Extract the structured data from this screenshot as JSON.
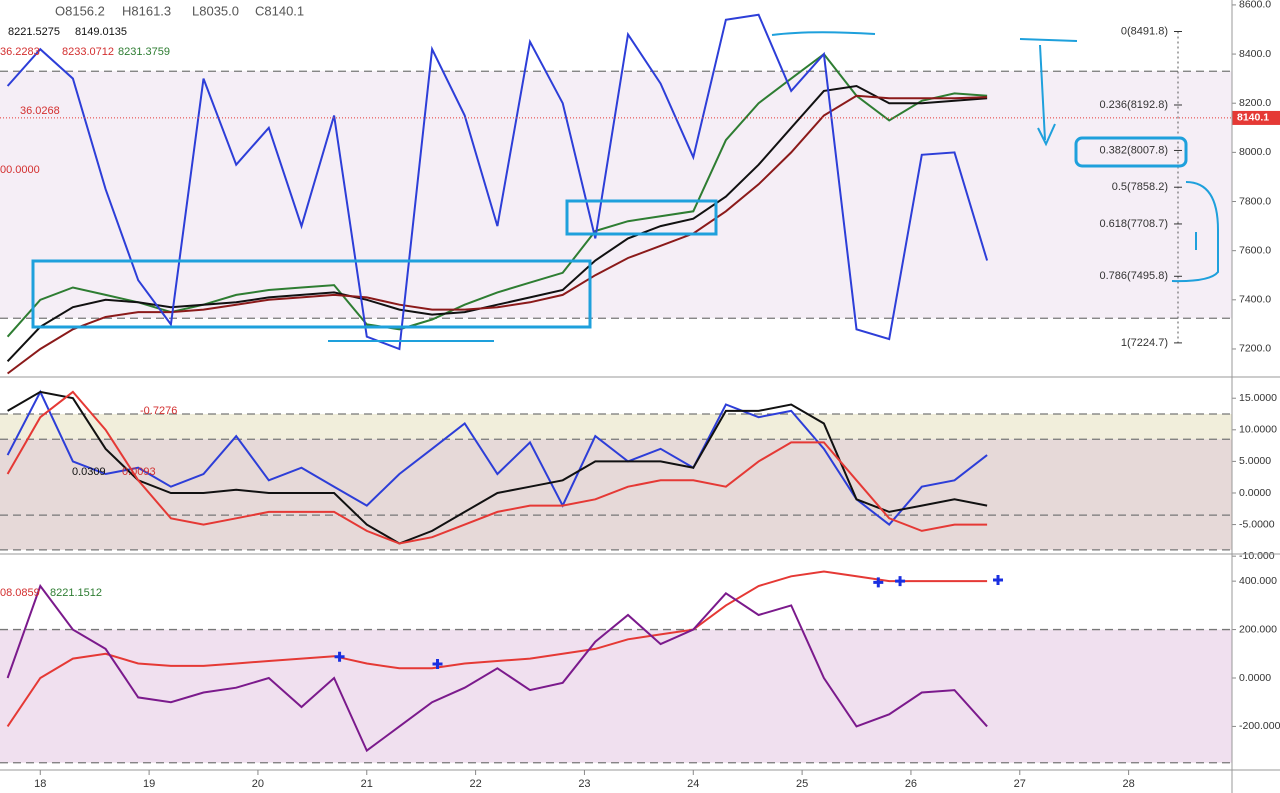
{
  "header": {
    "ohlc": [
      "O8156.2",
      "H8161.3",
      "L8035.0",
      "C8140.1"
    ]
  },
  "chart_data": [
    {
      "type": "line",
      "xlim": [
        17.63,
        28.95
      ],
      "xticks": [
        18,
        19,
        20,
        21,
        22,
        23,
        24,
        25,
        26,
        27,
        28
      ],
      "ylim": [
        7090,
        8620
      ],
      "yticks": [
        {
          "value": 8600,
          "label": "8600.0"
        },
        {
          "value": 8400,
          "label": "8400.0"
        },
        {
          "value": 8200,
          "label": "8200.0"
        },
        {
          "value": 8000,
          "label": "8000.0"
        },
        {
          "value": 7800,
          "label": "7800.0"
        },
        {
          "value": 7600,
          "label": "7600.0"
        },
        {
          "value": 7400,
          "label": "7400.0"
        },
        {
          "value": 7200,
          "label": "7200.0"
        }
      ],
      "bands": [
        {
          "from": 7325,
          "to": 8330,
          "color": "#f5eef6"
        }
      ],
      "hlines": [
        8330,
        7325
      ],
      "x": [
        17.7,
        18.0,
        18.3,
        18.6,
        18.9,
        19.2,
        19.5,
        19.8,
        20.1,
        20.4,
        20.7,
        21.0,
        21.3,
        21.6,
        21.9,
        22.2,
        22.5,
        22.8,
        23.1,
        23.4,
        23.7,
        24.0,
        24.3,
        24.6,
        24.9,
        25.2,
        25.5,
        25.8,
        26.1,
        26.4,
        26.7
      ],
      "series": [
        {
          "color": "#2e7d32",
          "values": [
            7250,
            7400,
            7450,
            7420,
            7390,
            7350,
            7380,
            7420,
            7440,
            7450,
            7460,
            7300,
            7280,
            7320,
            7380,
            7430,
            7470,
            7510,
            7680,
            7720,
            7740,
            7760,
            8050,
            8200,
            8300,
            8400,
            8230,
            8130,
            8210,
            8240,
            8230
          ]
        },
        {
          "color": "#111111",
          "values": [
            7150,
            7290,
            7370,
            7400,
            7390,
            7370,
            7380,
            7390,
            7410,
            7420,
            7430,
            7400,
            7360,
            7340,
            7350,
            7380,
            7410,
            7440,
            7560,
            7650,
            7700,
            7730,
            7820,
            7950,
            8100,
            8250,
            8270,
            8200,
            8200,
            8210,
            8220
          ]
        },
        {
          "color": "#8b1a1a",
          "values": [
            7100,
            7200,
            7280,
            7330,
            7350,
            7350,
            7360,
            7380,
            7400,
            7410,
            7420,
            7410,
            7380,
            7360,
            7360,
            7370,
            7390,
            7420,
            7500,
            7570,
            7620,
            7670,
            7760,
            7870,
            8000,
            8150,
            8230,
            8220,
            8220,
            8220,
            8225
          ]
        },
        {
          "color": "#2d3ed8",
          "values": [
            8270,
            8420,
            8300,
            7850,
            7480,
            7300,
            8300,
            7950,
            8100,
            7700,
            8150,
            7250,
            7200,
            8420,
            8150,
            7700,
            8450,
            8200,
            7650,
            8480,
            8280,
            7980,
            8540,
            8560,
            8250,
            8400,
            7280,
            7240,
            7990,
            8000,
            7560
          ]
        }
      ],
      "levels": [
        {
          "value": 8491.8,
          "label": "0(8491.8)"
        },
        {
          "value": 8192.8,
          "label": "0.236(8192.8)"
        },
        {
          "value": 8007.8,
          "label": "0.382(8007.8)"
        },
        {
          "value": 7858.2,
          "label": "0.5(7858.2)"
        },
        {
          "value": 7708.7,
          "label": "0.618(7708.7)"
        },
        {
          "value": 7495.8,
          "label": "0.786(7495.8)"
        },
        {
          "value": 7224.7,
          "label": "1(7224.7)"
        }
      ],
      "current": {
        "value": 8140.1,
        "label": "8140.1",
        "color": "#e53935"
      },
      "texts": [
        {
          "text": "8221.5275",
          "color": "#111111"
        },
        {
          "text": "8149.0135",
          "color": "#111111"
        },
        {
          "text": "36.2283",
          "color": "#d32f2f"
        },
        {
          "text": "8233.0712",
          "color": "#d32f2f"
        },
        {
          "text": "8231.3759",
          "color": "#2e7d32"
        },
        {
          "text": "36.0268",
          "color": "#d32f2f"
        },
        {
          "text": "00.0000",
          "color": "#d32f2f"
        }
      ]
    },
    {
      "type": "line",
      "xlim": [
        17.63,
        28.95
      ],
      "ylim": [
        -9.5,
        18.2
      ],
      "yticks": [
        {
          "value": 15,
          "label": "15.0000"
        },
        {
          "value": 10,
          "label": "10.0000"
        },
        {
          "value": 5,
          "label": "5.0000"
        },
        {
          "value": 0,
          "label": "0.0000"
        },
        {
          "value": -5,
          "label": "-5.0000"
        },
        {
          "value": -10,
          "label": "-10.000"
        }
      ],
      "bands": [
        {
          "from": 8.5,
          "to": 12.5,
          "color": "#f1eedb"
        },
        {
          "from": -9,
          "to": 8.5,
          "color": "#e6d9d8"
        }
      ],
      "hlines": [
        12.5,
        8.5,
        -3.5,
        -9
      ],
      "x": [
        17.7,
        18.0,
        18.3,
        18.6,
        18.9,
        19.2,
        19.5,
        19.8,
        20.1,
        20.4,
        20.7,
        21.0,
        21.3,
        21.6,
        21.9,
        22.2,
        22.5,
        22.8,
        23.1,
        23.4,
        23.7,
        24.0,
        24.3,
        24.6,
        24.9,
        25.2,
        25.5,
        25.8,
        26.1,
        26.4,
        26.7
      ],
      "series": [
        {
          "color": "#2d3ed8",
          "values": [
            6,
            16,
            5,
            3,
            4,
            1,
            3,
            9,
            2,
            4,
            1,
            -2,
            3,
            7,
            11,
            3,
            8,
            -2,
            9,
            5,
            7,
            4,
            14,
            12,
            13,
            7,
            -1,
            -5,
            1,
            2,
            6
          ]
        },
        {
          "color": "#111111",
          "values": [
            13,
            16,
            15,
            7,
            2,
            0,
            0,
            0.5,
            0,
            0,
            0,
            -5,
            -8,
            -6,
            -3,
            0,
            1,
            2,
            5,
            5,
            5,
            4,
            13,
            13,
            14,
            11,
            -1,
            -3,
            -2,
            -1,
            -2
          ]
        },
        {
          "color": "#e53935",
          "values": [
            3,
            12,
            16,
            10,
            2,
            -4,
            -5,
            -4,
            -3,
            -3,
            -3,
            -6,
            -8,
            -7,
            -5,
            -3,
            -2,
            -2,
            -1,
            1,
            2,
            2,
            1,
            5,
            8,
            8,
            2,
            -4,
            -6,
            -5,
            -5
          ]
        }
      ],
      "texts": [
        {
          "text": "-0.7276",
          "color": "#d32f2f"
        },
        {
          "text": "0.0309",
          "color": "#111111"
        },
        {
          "text": "0.0093",
          "color": "#d32f2f"
        }
      ]
    },
    {
      "type": "line",
      "xlim": [
        17.63,
        28.95
      ],
      "ylim": [
        -380,
        508
      ],
      "yticks": [
        {
          "value": 400,
          "label": "400.000"
        },
        {
          "value": 200,
          "label": "200.000"
        },
        {
          "value": 0,
          "label": "0.0000"
        },
        {
          "value": -200,
          "label": "-200.000"
        }
      ],
      "bands": [
        {
          "from": -350,
          "to": 200,
          "color": "#f0e0ef"
        }
      ],
      "hlines": [
        200,
        -350
      ],
      "x": [
        17.7,
        18.0,
        18.3,
        18.6,
        18.9,
        19.2,
        19.5,
        19.8,
        20.1,
        20.4,
        20.7,
        21.0,
        21.3,
        21.6,
        21.9,
        22.2,
        22.5,
        22.8,
        23.1,
        23.4,
        23.7,
        24.0,
        24.3,
        24.6,
        24.9,
        25.2,
        25.5,
        25.8,
        26.1,
        26.4,
        26.7
      ],
      "series": [
        {
          "color": "#e53935",
          "values": [
            -200,
            0,
            80,
            100,
            60,
            50,
            50,
            60,
            70,
            80,
            90,
            60,
            40,
            40,
            60,
            70,
            80,
            100,
            120,
            160,
            180,
            200,
            300,
            380,
            420,
            440,
            420,
            400,
            400,
            400,
            400
          ]
        },
        {
          "color": "#7b1a8c",
          "values": [
            0,
            380,
            200,
            120,
            -80,
            -100,
            -60,
            -40,
            0,
            -120,
            0,
            -300,
            -200,
            -100,
            -40,
            40,
            -50,
            -20,
            150,
            260,
            140,
            200,
            350,
            260,
            300,
            0,
            -200,
            -150,
            -60,
            -50,
            -200
          ]
        }
      ],
      "markers": {
        "color": "#1a2fe0",
        "x": [
          20.75,
          21.65,
          25.7,
          25.9,
          26.8
        ],
        "values": [
          88,
          58,
          395,
          400,
          405
        ]
      },
      "texts": [
        {
          "text": "08.0859",
          "color": "#d32f2f"
        },
        {
          "text": "8221.1512",
          "color": "#2e7d32"
        }
      ]
    }
  ]
}
